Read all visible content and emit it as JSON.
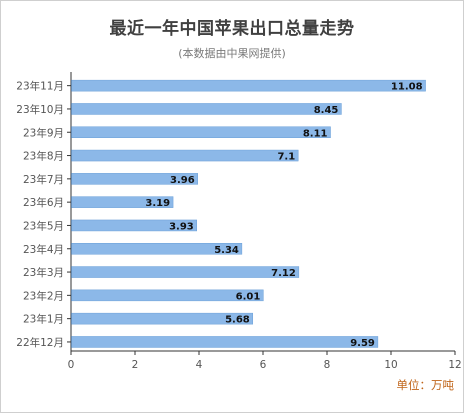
{
  "title": "最近一年中国苹果出口总量走势",
  "subtitle": "(本数据由中果网提供)",
  "unit_label": "单位：万吨",
  "colors": {
    "bar": "#8cb8e8",
    "bar_edge": "#6a9fd8",
    "axis": "#333333",
    "grid": "#e6e6e6",
    "tick_text": "#555555",
    "value_text": "#111111"
  },
  "chart_data": {
    "type": "bar",
    "orientation": "horizontal",
    "categories": [
      "23年11月",
      "23年10月",
      "23年9月",
      "23年8月",
      "23年7月",
      "23年6月",
      "23年5月",
      "23年4月",
      "23年3月",
      "23年2月",
      "23年1月",
      "22年12月"
    ],
    "values": [
      11.08,
      8.45,
      8.11,
      7.1,
      3.96,
      3.19,
      3.93,
      5.34,
      7.12,
      6.01,
      5.68,
      9.59
    ],
    "value_labels": [
      "11.08",
      "8.45",
      "8.11",
      "7.1",
      "3.96",
      "3.19",
      "3.93",
      "5.34",
      "7.12",
      "6.01",
      "5.68",
      "9.59"
    ],
    "xlim": [
      0,
      12
    ],
    "xticks": [
      "0",
      "2",
      "4",
      "6",
      "8",
      "10",
      "12"
    ],
    "grid": false
  }
}
